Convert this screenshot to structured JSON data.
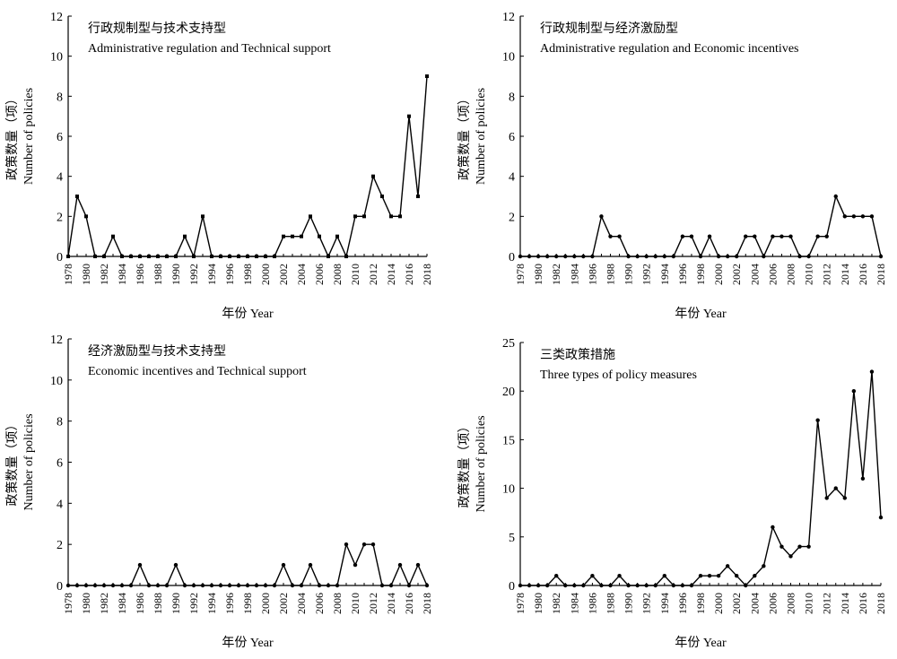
{
  "figure": {
    "xlabel": "年份 Year",
    "ylabel_zh": "政策数量（项）",
    "ylabel_en": "Number of policies"
  },
  "chart_data": [
    {
      "type": "line",
      "title": "行政规制型与技术支持型",
      "subtitle": "Administrative regulation and Technical support",
      "xlabel": "年份 Year",
      "ylabel": "政策数量（项） Number of policies",
      "xlim": [
        1978,
        2018
      ],
      "ylim": [
        0,
        12
      ],
      "yticks": [
        0,
        2,
        4,
        6,
        8,
        10,
        12
      ],
      "xticks": [
        1978,
        1980,
        1982,
        1984,
        1986,
        1988,
        1990,
        1992,
        1994,
        1996,
        1998,
        2000,
        2002,
        2004,
        2006,
        2008,
        2010,
        2012,
        2014,
        2016,
        2018
      ],
      "grid": false,
      "marker": "square",
      "x": [
        1978,
        1979,
        1980,
        1981,
        1982,
        1983,
        1984,
        1985,
        1986,
        1987,
        1988,
        1989,
        1990,
        1991,
        1992,
        1993,
        1994,
        1995,
        1996,
        1997,
        1998,
        1999,
        2000,
        2001,
        2002,
        2003,
        2004,
        2005,
        2006,
        2007,
        2008,
        2009,
        2010,
        2011,
        2012,
        2013,
        2014,
        2015,
        2016,
        2017,
        2018
      ],
      "values": [
        0,
        3,
        2,
        0,
        0,
        1,
        0,
        0,
        0,
        0,
        0,
        0,
        0,
        1,
        0,
        2,
        0,
        0,
        0,
        0,
        0,
        0,
        0,
        0,
        1,
        1,
        1,
        2,
        1,
        0,
        1,
        0,
        2,
        2,
        4,
        3,
        2,
        2,
        7,
        3,
        9
      ]
    },
    {
      "type": "line",
      "title": "行政规制型与经济激励型",
      "subtitle": "Administrative regulation and Economic incentives",
      "xlabel": "年份 Year",
      "ylabel": "政策数量（项） Number of policies",
      "xlim": [
        1978,
        2018
      ],
      "ylim": [
        0,
        12
      ],
      "yticks": [
        0,
        2,
        4,
        6,
        8,
        10,
        12
      ],
      "xticks": [
        1978,
        1980,
        1982,
        1984,
        1986,
        1988,
        1990,
        1992,
        1994,
        1996,
        1998,
        2000,
        2002,
        2004,
        2006,
        2008,
        2010,
        2012,
        2014,
        2016,
        2018
      ],
      "grid": false,
      "marker": "circle",
      "x": [
        1978,
        1979,
        1980,
        1981,
        1982,
        1983,
        1984,
        1985,
        1986,
        1987,
        1988,
        1989,
        1990,
        1991,
        1992,
        1993,
        1994,
        1995,
        1996,
        1997,
        1998,
        1999,
        2000,
        2001,
        2002,
        2003,
        2004,
        2005,
        2006,
        2007,
        2008,
        2009,
        2010,
        2011,
        2012,
        2013,
        2014,
        2015,
        2016,
        2017,
        2018
      ],
      "values": [
        0,
        0,
        0,
        0,
        0,
        0,
        0,
        0,
        0,
        2,
        1,
        1,
        0,
        0,
        0,
        0,
        0,
        0,
        1,
        1,
        0,
        1,
        0,
        0,
        0,
        1,
        1,
        0,
        1,
        1,
        1,
        0,
        0,
        1,
        1,
        3,
        2,
        2,
        2,
        2,
        0
      ]
    },
    {
      "type": "line",
      "title": "经济激励型与技术支持型",
      "subtitle": "Economic incentives and Technical support",
      "xlabel": "年份 Year",
      "ylabel": "政策数量（项） Number of policies",
      "xlim": [
        1978,
        2018
      ],
      "ylim": [
        0,
        12
      ],
      "yticks": [
        0,
        2,
        4,
        6,
        8,
        10,
        12
      ],
      "xticks": [
        1978,
        1980,
        1982,
        1984,
        1986,
        1988,
        1990,
        1992,
        1994,
        1996,
        1998,
        2000,
        2002,
        2004,
        2006,
        2008,
        2010,
        2012,
        2014,
        2016,
        2018
      ],
      "grid": false,
      "marker": "circle",
      "x": [
        1978,
        1979,
        1980,
        1981,
        1982,
        1983,
        1984,
        1985,
        1986,
        1987,
        1988,
        1989,
        1990,
        1991,
        1992,
        1993,
        1994,
        1995,
        1996,
        1997,
        1998,
        1999,
        2000,
        2001,
        2002,
        2003,
        2004,
        2005,
        2006,
        2007,
        2008,
        2009,
        2010,
        2011,
        2012,
        2013,
        2014,
        2015,
        2016,
        2017,
        2018
      ],
      "values": [
        0,
        0,
        0,
        0,
        0,
        0,
        0,
        0,
        1,
        0,
        0,
        0,
        1,
        0,
        0,
        0,
        0,
        0,
        0,
        0,
        0,
        0,
        0,
        0,
        1,
        0,
        0,
        1,
        0,
        0,
        0,
        2,
        1,
        2,
        2,
        0,
        0,
        1,
        0,
        1,
        0
      ]
    },
    {
      "type": "line",
      "title": "三类政策措施",
      "subtitle": "Three types of policy measures",
      "xlabel": "年份 Year",
      "ylabel": "政策数量（项） Number of policies",
      "xlim": [
        1978,
        2018
      ],
      "ylim": [
        0,
        25
      ],
      "yticks": [
        0,
        5,
        10,
        15,
        20,
        25
      ],
      "xticks": [
        1978,
        1980,
        1982,
        1984,
        1986,
        1988,
        1990,
        1992,
        1994,
        1996,
        1998,
        2000,
        2002,
        2004,
        2006,
        2008,
        2010,
        2012,
        2014,
        2016,
        2018
      ],
      "grid": false,
      "marker": "circle",
      "x": [
        1978,
        1979,
        1980,
        1981,
        1982,
        1983,
        1984,
        1985,
        1986,
        1987,
        1988,
        1989,
        1990,
        1991,
        1992,
        1993,
        1994,
        1995,
        1996,
        1997,
        1998,
        1999,
        2000,
        2001,
        2002,
        2003,
        2004,
        2005,
        2006,
        2007,
        2008,
        2009,
        2010,
        2011,
        2012,
        2013,
        2014,
        2015,
        2016,
        2017,
        2018
      ],
      "values": [
        0,
        0,
        0,
        0,
        1,
        0,
        0,
        0,
        1,
        0,
        0,
        1,
        0,
        0,
        0,
        0,
        1,
        0,
        0,
        0,
        1,
        1,
        1,
        2,
        1,
        0,
        1,
        2,
        6,
        4,
        3,
        4,
        4,
        17,
        9,
        10,
        9,
        20,
        11,
        22,
        7
      ]
    }
  ]
}
